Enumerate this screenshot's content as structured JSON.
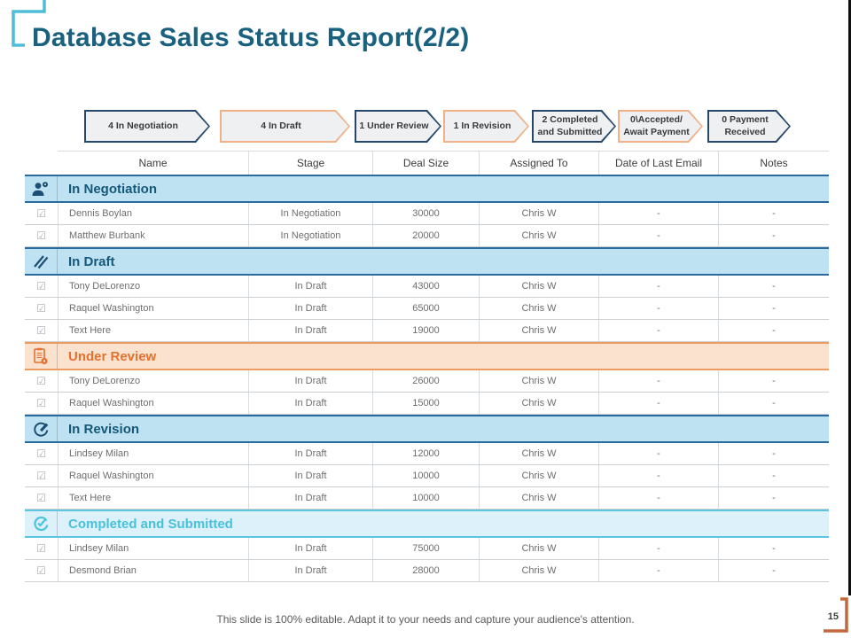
{
  "slide": {
    "title": "Database Sales Status Report(2/2)",
    "footer": "This slide is 100% editable. Adapt it to your needs and capture your audience's attention.",
    "page_number": "15"
  },
  "colors": {
    "title_teal": "#19617f",
    "corner_bracket_cyan": "#4fbdd9",
    "chevron_navy_border": "#24476b",
    "chevron_orange_border": "#f0b189",
    "chevron_fill": "#eef0f2",
    "section_blue_bg": "#bee2f2",
    "section_blue_text": "#16587a",
    "section_orange_bg": "#fbe2cf",
    "section_orange_text": "#e4712e",
    "section_cyan_bg": "#dcf1f9",
    "section_cyan_text": "#49c0dc",
    "page_bracket_orange": "#c2693e"
  },
  "pipeline": [
    {
      "label": "4 In Negotiation",
      "accent": "navy"
    },
    {
      "label": "4 In Draft",
      "accent": "orange"
    },
    {
      "label": "1 Under Review",
      "accent": "navy"
    },
    {
      "label": "1 In Revision",
      "accent": "orange"
    },
    {
      "label": "2 Completed and Submitted",
      "accent": "navy"
    },
    {
      "label": "0\\Accepted/ Await Payment",
      "accent": "orange"
    },
    {
      "label": "0 Payment Received",
      "accent": "navy"
    }
  ],
  "table": {
    "columns": [
      "Name",
      "Stage",
      "Deal Size",
      "Assigned To",
      "Date of Last Email",
      "Notes"
    ],
    "sections": [
      {
        "title": "In Negotiation",
        "theme": "blue",
        "icon": "person-icon",
        "rows": [
          {
            "name": "Dennis Boylan",
            "stage": "In Negotiation",
            "deal_size": "30000",
            "assigned_to": "Chris W",
            "date_of_last_email": "-",
            "notes": "-"
          },
          {
            "name": "Matthew Burbank",
            "stage": "In Negotiation",
            "deal_size": "20000",
            "assigned_to": "Chris W",
            "date_of_last_email": "-",
            "notes": "-"
          }
        ]
      },
      {
        "title": "In Draft",
        "theme": "blue",
        "icon": "pencil-icon",
        "rows": [
          {
            "name": "Tony DeLorenzo",
            "stage": "In Draft",
            "deal_size": "43000",
            "assigned_to": "Chris W",
            "date_of_last_email": "-",
            "notes": "-"
          },
          {
            "name": "Raquel Washington",
            "stage": "In Draft",
            "deal_size": "65000",
            "assigned_to": "Chris W",
            "date_of_last_email": "-",
            "notes": "-"
          },
          {
            "name": "Text Here",
            "stage": "In Draft",
            "deal_size": "19000",
            "assigned_to": "Chris W",
            "date_of_last_email": "-",
            "notes": "-"
          }
        ]
      },
      {
        "title": "Under Review",
        "theme": "orange",
        "icon": "clipboard-icon",
        "rows": [
          {
            "name": "Tony DeLorenzo",
            "stage": "In Draft",
            "deal_size": "26000",
            "assigned_to": "Chris W",
            "date_of_last_email": "-",
            "notes": "-"
          },
          {
            "name": "Raquel Washington",
            "stage": "In Draft",
            "deal_size": "15000",
            "assigned_to": "Chris W",
            "date_of_last_email": "-",
            "notes": "-"
          }
        ]
      },
      {
        "title": "In Revision",
        "theme": "blue",
        "icon": "edit-circle-icon",
        "rows": [
          {
            "name": "Lindsey Milan",
            "stage": "In Draft",
            "deal_size": "12000",
            "assigned_to": "Chris W",
            "date_of_last_email": "-",
            "notes": "-"
          },
          {
            "name": "Raquel Washington",
            "stage": "In Draft",
            "deal_size": "10000",
            "assigned_to": "Chris W",
            "date_of_last_email": "-",
            "notes": "-"
          },
          {
            "name": "Text Here",
            "stage": "In Draft",
            "deal_size": "10000",
            "assigned_to": "Chris W",
            "date_of_last_email": "-",
            "notes": "-"
          }
        ]
      },
      {
        "title": "Completed and Submitted",
        "theme": "cyan",
        "icon": "check-circle-icon",
        "rows": [
          {
            "name": "Lindsey Milan",
            "stage": "In Draft",
            "deal_size": "75000",
            "assigned_to": "Chris W",
            "date_of_last_email": "-",
            "notes": "-"
          },
          {
            "name": "Desmond Brian",
            "stage": "In Draft",
            "deal_size": "28000",
            "assigned_to": "Chris W",
            "date_of_last_email": "-",
            "notes": "-"
          }
        ]
      }
    ]
  }
}
